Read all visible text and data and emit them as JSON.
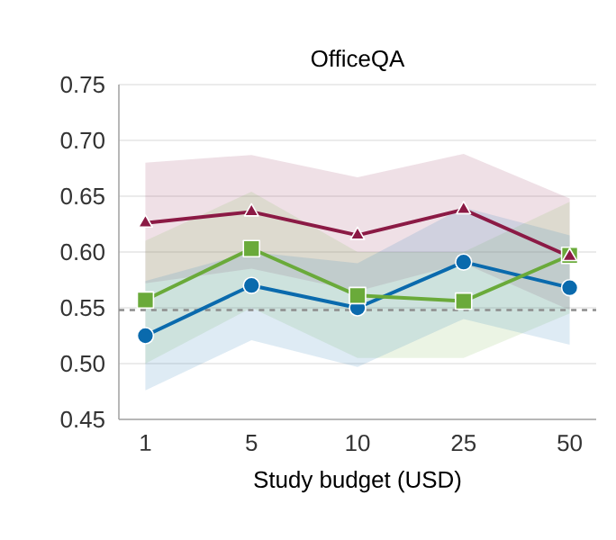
{
  "chart_data": {
    "type": "line",
    "title": "OfficeQA",
    "xlabel": "Study budget (USD)",
    "categories": [
      "1",
      "5",
      "10",
      "25",
      "50"
    ],
    "series": [
      {
        "color": "#8b1a45",
        "marker": "triangle",
        "values": [
          0.626,
          0.636,
          0.615,
          0.638,
          0.596
        ],
        "lower": [
          0.572,
          0.585,
          0.565,
          0.59,
          0.548
        ],
        "upper": [
          0.68,
          0.687,
          0.667,
          0.688,
          0.648
        ]
      },
      {
        "color": "#6aaa3a",
        "marker": "square",
        "values": [
          0.557,
          0.603,
          0.561,
          0.556,
          0.597
        ],
        "lower": [
          0.5,
          0.55,
          0.505,
          0.505,
          0.545
        ],
        "upper": [
          0.61,
          0.654,
          0.6,
          0.6,
          0.645
        ]
      },
      {
        "color": "#0a6aad",
        "marker": "circle",
        "values": [
          0.525,
          0.57,
          0.55,
          0.591,
          0.568
        ],
        "lower": [
          0.476,
          0.521,
          0.497,
          0.54,
          0.517
        ],
        "upper": [
          0.574,
          0.6,
          0.59,
          0.64,
          0.615
        ]
      }
    ],
    "ylim": [
      0.45,
      0.75
    ],
    "yticks": [
      {
        "value": 0.45,
        "label": "0.45"
      },
      {
        "value": 0.5,
        "label": "0.50"
      },
      {
        "value": 0.55,
        "label": "0.55"
      },
      {
        "value": 0.6,
        "label": "0.60"
      },
      {
        "value": 0.65,
        "label": "0.65"
      },
      {
        "value": 0.7,
        "label": "0.70"
      },
      {
        "value": 0.75,
        "label": "0.75"
      }
    ],
    "ref_lines": [
      {
        "axis": "y",
        "value": 0.548,
        "color": "#8c8c8c",
        "line_style": "dashed"
      }
    ],
    "grid": "y",
    "line_style": "solid"
  }
}
